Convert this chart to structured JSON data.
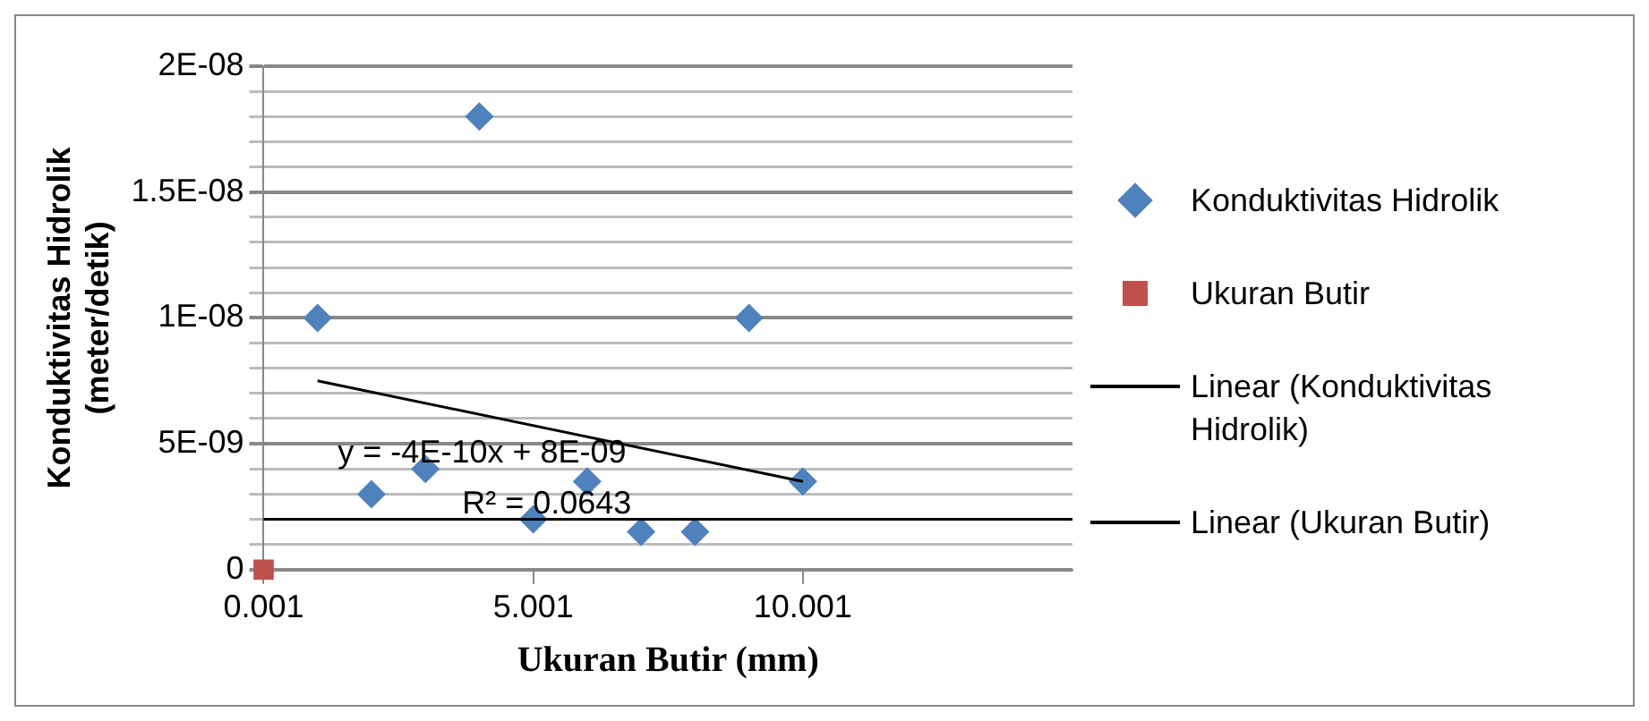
{
  "chart_data": {
    "type": "scatter",
    "xlabel": "Ukuran Butir (mm)",
    "ylabel": "Konduktivitas Hidrolik (meter/detik)",
    "xlim": [
      0.001,
      15.001
    ],
    "xticks": [
      0.001,
      5.001,
      10.001
    ],
    "ylim": [
      0,
      2e-08
    ],
    "yticks": [
      {
        "value": 0,
        "label": "0"
      },
      {
        "value": 1e-09,
        "label": null
      },
      {
        "value": 2e-09,
        "label": null
      },
      {
        "value": 3e-09,
        "label": null
      },
      {
        "value": 4e-09,
        "label": null
      },
      {
        "value": 5e-09,
        "label": "5E-09"
      },
      {
        "value": 6e-09,
        "label": null
      },
      {
        "value": 7e-09,
        "label": null
      },
      {
        "value": 8e-09,
        "label": null
      },
      {
        "value": 9e-09,
        "label": null
      },
      {
        "value": 1e-08,
        "label": "1E-08"
      },
      {
        "value": 1.1e-08,
        "label": null
      },
      {
        "value": 1.2e-08,
        "label": null
      },
      {
        "value": 1.3e-08,
        "label": null
      },
      {
        "value": 1.4e-08,
        "label": null
      },
      {
        "value": 1.5e-08,
        "label": "1.5E-08"
      },
      {
        "value": 1.6e-08,
        "label": null
      },
      {
        "value": 1.7e-08,
        "label": null
      },
      {
        "value": 1.8e-08,
        "label": null
      },
      {
        "value": 1.9e-08,
        "label": null
      },
      {
        "value": 2e-08,
        "label": "2E-08"
      }
    ],
    "grid": "y",
    "legend": "right",
    "annotations": [
      "y = -4E-10x + 8E-09",
      "R² = 0.0643"
    ],
    "series": [
      {
        "name": "Konduktivitas Hidrolik",
        "type": "scatter",
        "marker": "diamond",
        "color": "#4f81bd",
        "x": [
          1.001,
          2.001,
          3.001,
          4.001,
          5.001,
          6.001,
          7.001,
          8.001,
          9.001,
          10.001
        ],
        "values": [
          1e-08,
          3e-09,
          4e-09,
          1.8e-08,
          2e-09,
          3.5e-09,
          1.5e-09,
          1.5e-09,
          1e-08,
          3.5e-09
        ]
      },
      {
        "name": "Ukuran Butir",
        "type": "scatter",
        "marker": "square",
        "color": "#c0504d",
        "x": [
          0.001
        ],
        "values": [
          0
        ]
      },
      {
        "name": "Linear (Konduktivitas Hidrolik)",
        "type": "line",
        "marker": "none",
        "color": "#000000",
        "x": [
          1.001,
          10.001
        ],
        "values": [
          7.5e-09,
          3.5e-09
        ]
      },
      {
        "name": "Linear (Ukuran Butir)",
        "type": "line",
        "marker": "none",
        "color": "#000000",
        "x": [
          0.001,
          15.001
        ],
        "values": [
          2e-09,
          2e-09
        ]
      }
    ]
  }
}
